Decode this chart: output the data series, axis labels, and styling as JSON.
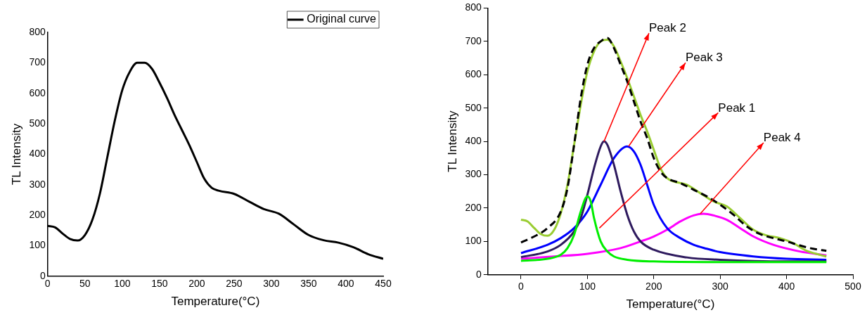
{
  "chart_data": [
    {
      "type": "line",
      "xlabel": "Temperature(°C)",
      "ylabel": "TL Intensity",
      "xlim": [
        0,
        450
      ],
      "ylim": [
        0,
        800
      ],
      "xticks": [
        0,
        50,
        100,
        150,
        200,
        250,
        300,
        350,
        400,
        450
      ],
      "yticks": [
        0,
        100,
        200,
        300,
        400,
        500,
        600,
        700,
        800
      ],
      "grid": false,
      "legend": "top right",
      "marker": "none",
      "series": [
        {
          "name": "Original curve",
          "color": "#000000",
          "x": [
            0,
            10,
            20,
            30,
            40,
            50,
            60,
            70,
            80,
            90,
            100,
            110,
            120,
            130,
            140,
            150,
            160,
            170,
            180,
            190,
            200,
            210,
            220,
            230,
            250,
            270,
            290,
            310,
            330,
            350,
            370,
            390,
            410,
            430,
            450
          ],
          "values": [
            165,
            160,
            140,
            122,
            117,
            135,
            185,
            270,
            390,
            510,
            610,
            670,
            700,
            700,
            680,
            635,
            585,
            530,
            480,
            430,
            375,
            320,
            290,
            280,
            270,
            245,
            220,
            205,
            170,
            135,
            118,
            110,
            95,
            72,
            57
          ]
        }
      ]
    },
    {
      "type": "line",
      "xlabel": "Temperature(°C)",
      "ylabel": "TL Intensity",
      "xlim": [
        -50,
        500
      ],
      "ylim": [
        0,
        800
      ],
      "xticks": [
        0,
        100,
        200,
        300,
        400,
        500
      ],
      "yticks": [
        0,
        100,
        200,
        300,
        400,
        500,
        600,
        700,
        800
      ],
      "grid": false,
      "marker": "none",
      "series": [
        {
          "color": "#000000",
          "line_style": "dashed",
          "x": [
            0,
            20,
            40,
            60,
            70,
            80,
            90,
            100,
            110,
            120,
            130,
            140,
            150,
            160,
            170,
            180,
            190,
            200,
            210,
            220,
            240,
            260,
            280,
            300,
            320,
            340,
            360,
            380,
            400,
            420,
            440,
            460
          ],
          "values": [
            97,
            115,
            140,
            190,
            260,
            390,
            530,
            630,
            680,
            700,
            710,
            680,
            630,
            580,
            520,
            460,
            410,
            350,
            310,
            290,
            275,
            255,
            235,
            210,
            180,
            145,
            122,
            110,
            100,
            88,
            78,
            72
          ]
        },
        {
          "color": "#9acd32",
          "x": [
            0,
            10,
            20,
            30,
            40,
            50,
            60,
            70,
            80,
            90,
            100,
            110,
            120,
            130,
            140,
            150,
            160,
            170,
            180,
            190,
            200,
            210,
            220,
            230,
            250,
            270,
            290,
            310,
            330,
            350,
            370,
            390,
            410,
            430,
            450,
            460
          ],
          "values": [
            165,
            160,
            140,
            122,
            117,
            135,
            185,
            270,
            390,
            510,
            610,
            670,
            700,
            705,
            685,
            640,
            590,
            535,
            480,
            430,
            375,
            320,
            290,
            280,
            270,
            245,
            220,
            205,
            170,
            135,
            118,
            110,
            95,
            72,
            60,
            55
          ]
        },
        {
          "color": "#00ee00",
          "x": [
            0,
            40,
            60,
            70,
            80,
            90,
            100,
            105,
            110,
            120,
            130,
            140,
            160,
            200,
            300,
            460
          ],
          "values": [
            42,
            48,
            60,
            80,
            120,
            190,
            235,
            220,
            170,
            100,
            70,
            55,
            45,
            40,
            38,
            38
          ]
        },
        {
          "color": "#2e1a5e",
          "x": [
            0,
            40,
            60,
            80,
            90,
            100,
            110,
            120,
            125,
            130,
            140,
            150,
            160,
            170,
            180,
            200,
            250,
            300,
            400,
            460
          ],
          "values": [
            53,
            70,
            90,
            130,
            170,
            240,
            320,
            385,
            400,
            390,
            330,
            250,
            180,
            130,
            100,
            75,
            52,
            45,
            40,
            40
          ]
        },
        {
          "color": "#0000ff",
          "x": [
            0,
            40,
            60,
            80,
            100,
            120,
            140,
            160,
            170,
            180,
            190,
            200,
            220,
            240,
            260,
            280,
            300,
            350,
            400,
            460
          ],
          "values": [
            65,
            90,
            110,
            140,
            190,
            270,
            350,
            385,
            370,
            330,
            270,
            210,
            140,
            110,
            90,
            78,
            68,
            55,
            48,
            45
          ]
        },
        {
          "color": "#ff00ff",
          "x": [
            0,
            50,
            100,
            150,
            180,
            200,
            220,
            240,
            260,
            275,
            290,
            310,
            330,
            350,
            380,
            420,
            460
          ],
          "values": [
            48,
            55,
            63,
            80,
            100,
            115,
            135,
            160,
            178,
            183,
            178,
            165,
            140,
            115,
            90,
            70,
            58
          ]
        }
      ],
      "annotations": [
        {
          "text": "Peak 2",
          "x": 125,
          "y": 400
        },
        {
          "text": "Peak 3",
          "x": 162,
          "y": 385
        },
        {
          "text": "Peak 1",
          "x": 118,
          "y": 140
        },
        {
          "text": "Peak 4",
          "x": 270,
          "y": 183
        }
      ]
    }
  ]
}
